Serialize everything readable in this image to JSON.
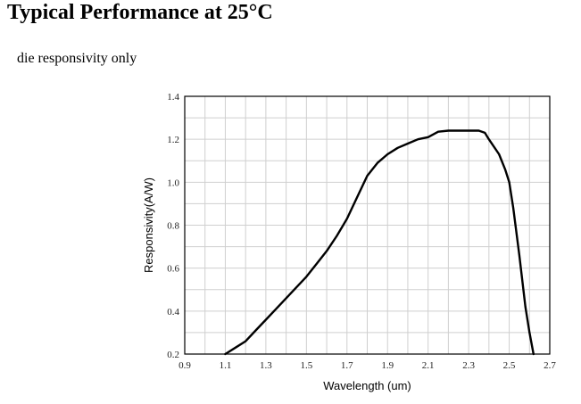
{
  "page": {
    "heading": "Typical Performance at 25°C",
    "subheading": "die responsivity only"
  },
  "chart_data": {
    "type": "line",
    "title": "",
    "xlabel": "Wavelength (um)",
    "ylabel": "Responsivity(A/W)",
    "xlim": [
      0.9,
      2.7
    ],
    "ylim": [
      0.2,
      1.4
    ],
    "xticks": [
      "0.9",
      "1.1",
      "1.3",
      "1.5",
      "1.7",
      "1.9",
      "2.1",
      "2.3",
      "2.5",
      "2.7"
    ],
    "yticks": [
      "0.2",
      "0.4",
      "0.6",
      "0.8",
      "1.0",
      "1.2",
      "1.4"
    ],
    "grid": true,
    "line_color": "#000000",
    "series": [
      {
        "x": [
          1.1,
          1.15,
          1.2,
          1.25,
          1.3,
          1.35,
          1.4,
          1.45,
          1.5,
          1.55,
          1.6,
          1.65,
          1.7,
          1.75,
          1.8,
          1.85,
          1.9,
          1.95,
          2.0,
          2.05,
          2.1,
          2.15,
          2.2,
          2.25,
          2.3,
          2.35,
          2.38,
          2.4,
          2.45,
          2.48,
          2.5,
          2.52,
          2.55,
          2.58,
          2.6,
          2.62
        ],
        "y": [
          0.2,
          0.23,
          0.26,
          0.31,
          0.36,
          0.41,
          0.46,
          0.51,
          0.56,
          0.62,
          0.68,
          0.75,
          0.83,
          0.93,
          1.03,
          1.09,
          1.13,
          1.16,
          1.18,
          1.2,
          1.21,
          1.235,
          1.24,
          1.24,
          1.24,
          1.24,
          1.23,
          1.2,
          1.13,
          1.06,
          1.0,
          0.88,
          0.66,
          0.42,
          0.3,
          0.2
        ]
      }
    ]
  }
}
